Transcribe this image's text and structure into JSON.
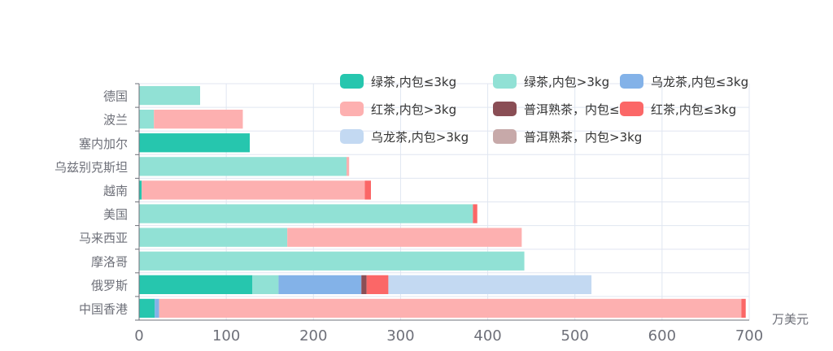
{
  "chart_data": {
    "type": "bar",
    "orientation": "horizontal",
    "stacked": true,
    "xlabel": "万美元",
    "xlim": [
      0,
      700
    ],
    "x_ticks": [
      "0",
      "100",
      "200",
      "300",
      "400",
      "500",
      "600",
      "700"
    ],
    "grid": true,
    "legend_position": "top-right",
    "categories": [
      "德国",
      "波兰",
      "塞内加尔",
      "乌兹别克斯坦",
      "越南",
      "美国",
      "马来西亚",
      "摩洛哥",
      "俄罗斯",
      "中国香港"
    ],
    "series": [
      {
        "name": "绿茶,内包≤3kg",
        "color": "#26c6ae",
        "values": [
          0,
          0,
          127,
          0,
          3,
          0,
          0,
          0,
          130,
          18
        ]
      },
      {
        "name": "绿茶,内包>3kg",
        "color": "#91e1d5",
        "values": [
          70,
          17,
          0,
          238,
          0,
          383,
          170,
          442,
          30,
          0
        ]
      },
      {
        "name": "乌龙茶,内包≤3kg",
        "color": "#83b2e8",
        "values": [
          0,
          0,
          0,
          0,
          0,
          0,
          0,
          0,
          95,
          5
        ]
      },
      {
        "name": "红茶,内包>3kg",
        "color": "#fdb0b0",
        "values": [
          0,
          102,
          0,
          3,
          256,
          0,
          269,
          0,
          0,
          668
        ]
      },
      {
        "name": "普洱熟茶，内包≤3kg",
        "color": "#8a4e55",
        "values": [
          0,
          0,
          0,
          0,
          0,
          0,
          0,
          0,
          6,
          0
        ]
      },
      {
        "name": "红茶,内包≤3kg",
        "color": "#fb6767",
        "values": [
          0,
          0,
          0,
          0,
          7,
          5,
          0,
          0,
          25,
          5
        ]
      },
      {
        "name": "乌龙茶,内包>3kg",
        "color": "#c3d9f2",
        "values": [
          0,
          0,
          0,
          0,
          0,
          0,
          0,
          0,
          233,
          0
        ]
      },
      {
        "name": "普洱熟茶，内包>3kg",
        "color": "#c7a9a9",
        "values": [
          0,
          0,
          0,
          0,
          0,
          0,
          0,
          0,
          0,
          0
        ]
      }
    ]
  }
}
